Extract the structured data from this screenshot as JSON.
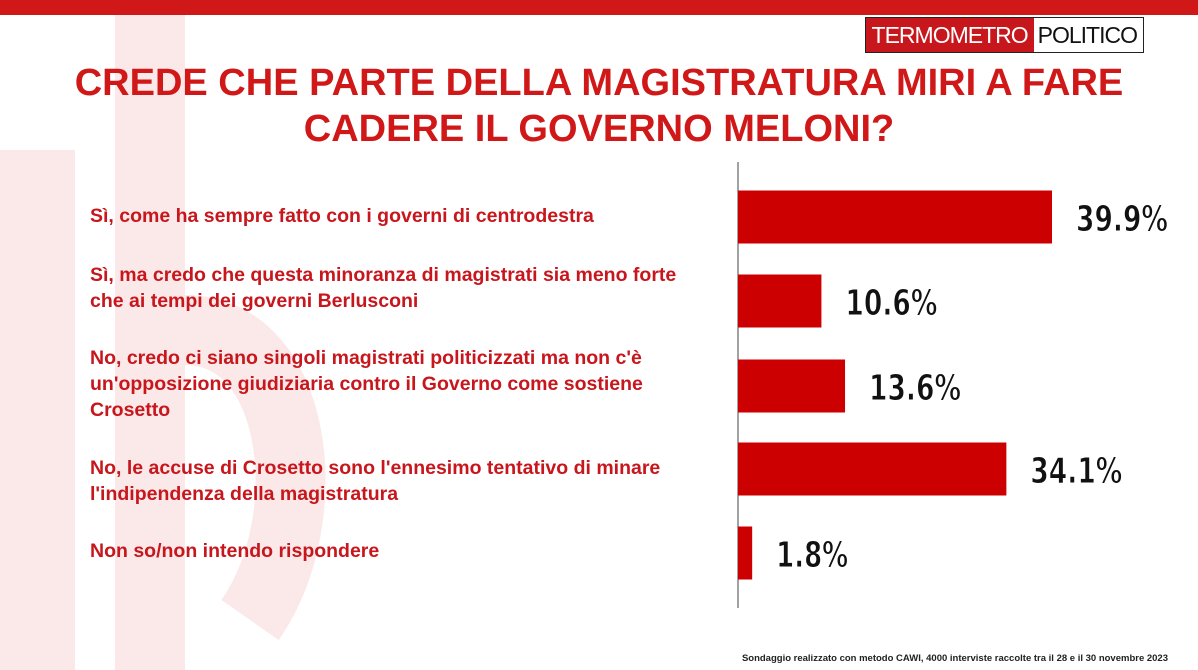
{
  "header": {
    "logo_red": "TERMOMETRO",
    "logo_white": "POLITICO",
    "title": "CREDE CHE PARTE DELLA MAGISTRATURA MIRI A FARE CADERE IL GOVERNO MELONI?"
  },
  "colors": {
    "accent": "#d01818",
    "bar": "#cc0000",
    "watermark": "#fbe9e9"
  },
  "chart_data": {
    "type": "bar",
    "orientation": "horizontal",
    "categories": [
      "Sì, come ha sempre fatto con i governi di centrodestra",
      "Sì, ma credo che questa minoranza di magistrati sia meno forte che ai tempi dei governi Berlusconi",
      "No, credo ci siano singoli magistrati politicizzati ma non c'è un'opposizione giudiziaria contro il Governo come sostiene Crosetto",
      "No, le accuse di Crosetto sono l'ennesimo tentativo di minare l'indipendenza della magistratura",
      "Non so/non intendo rispondere"
    ],
    "values": [
      39.9,
      10.6,
      13.6,
      34.1,
      1.8
    ],
    "value_labels": [
      "39.9%",
      "10.6%",
      "13.6%",
      "34.1%",
      "1.8%"
    ],
    "unit": "%",
    "grid": false,
    "legend": "none"
  },
  "footnote": "Sondaggio realizzato con metodo CAWI, 4000 interviste raccolte tra il 28 e il 30 novembre 2023"
}
